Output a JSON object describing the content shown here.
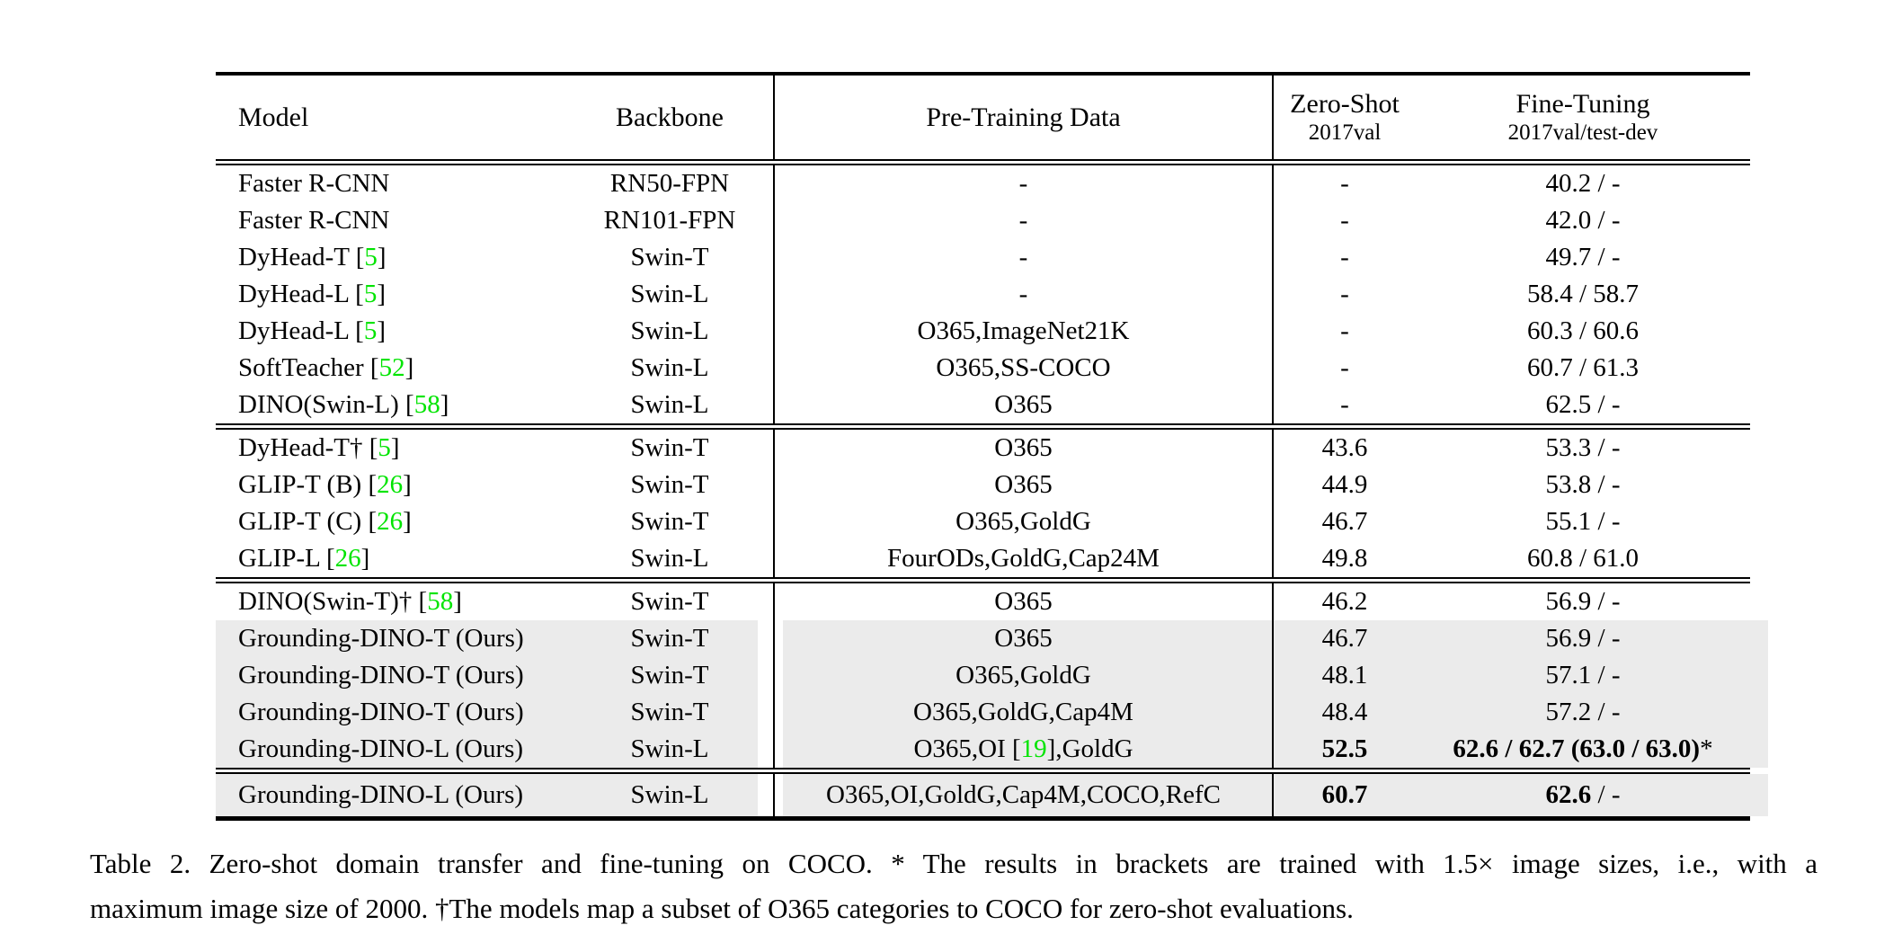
{
  "colors": {
    "cite_green": "#00e400",
    "row_highlight": "#ebebeb",
    "rule": "#000000"
  },
  "header": {
    "model": "Model",
    "backbone": "Backbone",
    "pretrain": "Pre-Training Data",
    "zs_line1": "Zero-Shot",
    "zs_line2": "2017val",
    "ft_line1": "Fine-Tuning",
    "ft_line2": "2017val/test-dev"
  },
  "blocks": [
    {
      "rows": [
        {
          "model": "Faster R-CNN",
          "backbone": "RN50-FPN",
          "pretrain": "-",
          "zs": "-",
          "ft": "40.2 / -"
        },
        {
          "model": "Faster R-CNN",
          "backbone": "RN101-FPN",
          "pretrain": "-",
          "zs": "-",
          "ft": "42.0 / -"
        },
        {
          "model": "DyHead-T [5]",
          "backbone": "Swin-T",
          "pretrain": "-",
          "zs": "-",
          "ft": "49.7 / -"
        },
        {
          "model": "DyHead-L [5]",
          "backbone": "Swin-L",
          "pretrain": "-",
          "zs": "-",
          "ft": "58.4 / 58.7"
        },
        {
          "model": "DyHead-L [5]",
          "backbone": "Swin-L",
          "pretrain": "O365,ImageNet21K",
          "zs": "-",
          "ft": "60.3 / 60.6"
        },
        {
          "model": "SoftTeacher [52]",
          "backbone": "Swin-L",
          "pretrain": "O365,SS-COCO",
          "zs": "-",
          "ft": "60.7 / 61.3"
        },
        {
          "model": "DINO(Swin-L) [58]",
          "backbone": "Swin-L",
          "pretrain": "O365",
          "zs": "-",
          "ft": "62.5 / -"
        }
      ]
    },
    {
      "rows": [
        {
          "model": "DyHead-T† [5]",
          "backbone": "Swin-T",
          "pretrain": "O365",
          "zs": "43.6",
          "ft": "53.3 / -"
        },
        {
          "model": "GLIP-T (B) [26]",
          "backbone": "Swin-T",
          "pretrain": "O365",
          "zs": "44.9",
          "ft": "53.8 / -"
        },
        {
          "model": "GLIP-T (C) [26]",
          "backbone": "Swin-T",
          "pretrain": "O365,GoldG",
          "zs": "46.7",
          "ft": "55.1 / -"
        },
        {
          "model": "GLIP-L [26]",
          "backbone": "Swin-L",
          "pretrain": "FourODs,GoldG,Cap24M",
          "zs": "49.8",
          "ft": "60.8 / 61.0"
        }
      ]
    },
    {
      "rows": [
        {
          "model": "DINO(Swin-T)† [58]",
          "backbone": "Swin-T",
          "pretrain": "O365",
          "zs": "46.2",
          "ft": "56.9 / -"
        },
        {
          "model": "Grounding-DINO-T (Ours)",
          "backbone": "Swin-T",
          "pretrain": "O365",
          "zs": "46.7",
          "ft": "56.9 / -",
          "highlight": true
        },
        {
          "model": "Grounding-DINO-T (Ours)",
          "backbone": "Swin-T",
          "pretrain": "O365,GoldG",
          "zs": "48.1",
          "ft": "57.1 / -",
          "highlight": true
        },
        {
          "model": "Grounding-DINO-T (Ours)",
          "backbone": "Swin-T",
          "pretrain": "O365,GoldG,Cap4M",
          "zs": "48.4",
          "ft": "57.2 / -",
          "highlight": true
        },
        {
          "model": "Grounding-DINO-L (Ours)",
          "backbone": "Swin-L",
          "pretrain": "O365,OI [19],GoldG",
          "zs": "52.5",
          "zs_bold": true,
          "ft_bold": "62.6 / 62.7 (63.0 / 63.0)",
          "ft": "*",
          "highlight": true
        }
      ]
    },
    {
      "rows": [
        {
          "model": "Grounding-DINO-L (Ours)",
          "backbone": "Swin-L",
          "pretrain": "O365,OI,GoldG,Cap4M,COCO,RefC",
          "zs": "60.7",
          "zs_bold": true,
          "ft_bold": "62.6",
          "ft": " / -",
          "highlight": true
        }
      ]
    }
  ],
  "caption": {
    "line1": "Table 2. Zero-shot domain transfer and fine-tuning on COCO. * The results in brackets are trained with 1.5× image sizes, i.e., with a",
    "line2": "maximum image size of 2000. †The models map a subset of O365 categories to COCO for zero-shot evaluations."
  }
}
